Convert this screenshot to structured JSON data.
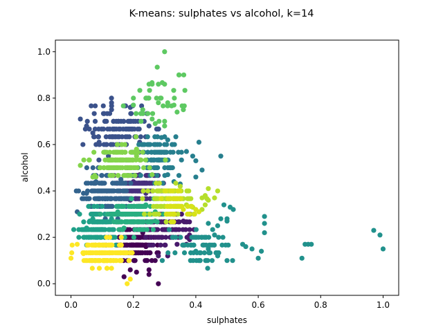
{
  "chart_data": {
    "type": "scatter",
    "title": "K-means: sulphates vs alcohol, k=14",
    "xlabel": "sulphates",
    "ylabel": "alcohol",
    "xlim": [
      -0.05,
      1.05
    ],
    "ylim": [
      -0.05,
      1.05
    ],
    "xticks": [
      "0.0",
      "0.2",
      "0.4",
      "0.6",
      "0.8",
      "1.0"
    ],
    "yticks": [
      "0.0",
      "0.2",
      "0.4",
      "0.6",
      "0.8",
      "1.0"
    ],
    "grid": false,
    "legend": "none",
    "colormap": "viridis",
    "clusters": [
      {
        "id": 0,
        "color": "#440154",
        "center": [
          0.21,
          0.17
        ],
        "spread": [
          0.03,
          0.035
        ],
        "count": 180,
        "points": [
          [
            0.19,
            0.06
          ],
          [
            0.21,
            0.05
          ],
          [
            0.25,
            0.06
          ],
          [
            0.25,
            0.04
          ],
          [
            0.28,
            0.0
          ],
          [
            0.17,
            0.03
          ],
          [
            0.24,
            0.16
          ],
          [
            0.23,
            0.22
          ]
        ]
      },
      {
        "id": 1,
        "color": "#481a6c",
        "center": [
          0.3,
          0.24
        ],
        "spread": [
          0.04,
          0.04
        ],
        "count": 90,
        "points": [
          [
            0.36,
            0.27
          ],
          [
            0.38,
            0.21
          ],
          [
            0.34,
            0.17
          ],
          [
            0.37,
            0.17
          ],
          [
            0.38,
            0.19
          ],
          [
            0.34,
            0.3
          ],
          [
            0.28,
            0.12
          ],
          [
            0.31,
            0.12
          ]
        ]
      },
      {
        "id": 2,
        "color": "#472f7d",
        "center": [
          0.215,
          0.42
        ],
        "spread": [
          0.028,
          0.028
        ],
        "count": 170,
        "points": [
          [
            0.19,
            0.36
          ],
          [
            0.22,
            0.47
          ],
          [
            0.2,
            0.44
          ],
          [
            0.24,
            0.39
          ]
        ]
      },
      {
        "id": 3,
        "color": "#3b528b",
        "center": [
          0.15,
          0.66
        ],
        "spread": [
          0.05,
          0.05
        ],
        "count": 120,
        "points": [
          [
            0.03,
            0.71
          ],
          [
            0.05,
            0.68
          ],
          [
            0.13,
            0.78
          ],
          [
            0.13,
            0.75
          ],
          [
            0.19,
            0.76
          ],
          [
            0.2,
            0.7
          ],
          [
            0.25,
            0.68
          ],
          [
            0.07,
            0.65
          ],
          [
            0.09,
            0.61
          ],
          [
            0.22,
            0.61
          ],
          [
            0.12,
            0.55
          ]
        ]
      },
      {
        "id": 4,
        "color": "#33638d",
        "center": [
          0.11,
          0.38
        ],
        "spread": [
          0.04,
          0.04
        ],
        "count": 170,
        "points": [
          [
            0.02,
            0.31
          ],
          [
            0.04,
            0.39
          ],
          [
            0.05,
            0.39
          ],
          [
            0.08,
            0.44
          ],
          [
            0.09,
            0.3
          ],
          [
            0.11,
            0.28
          ],
          [
            0.15,
            0.28
          ],
          [
            0.16,
            0.45
          ]
        ]
      },
      {
        "id": 5,
        "color": "#277f8e",
        "center": [
          0.28,
          0.55
        ],
        "spread": [
          0.035,
          0.04
        ],
        "count": 100,
        "points": [
          [
            0.29,
            0.63
          ],
          [
            0.31,
            0.62
          ],
          [
            0.3,
            0.6
          ],
          [
            0.37,
            0.57
          ],
          [
            0.39,
            0.55
          ],
          [
            0.4,
            0.53
          ],
          [
            0.42,
            0.49
          ],
          [
            0.4,
            0.46
          ],
          [
            0.41,
            0.61
          ],
          [
            0.48,
            0.55
          ],
          [
            0.33,
            0.44
          ],
          [
            0.35,
            0.43
          ],
          [
            0.31,
            0.47
          ]
        ]
      },
      {
        "id": 6,
        "color": "#21918c",
        "center": [
          0.42,
          0.16
        ],
        "spread": [
          0.05,
          0.04
        ],
        "count": 70,
        "points": [
          [
            0.4,
            0.14
          ],
          [
            0.42,
            0.2
          ],
          [
            0.44,
            0.26
          ],
          [
            0.46,
            0.21
          ],
          [
            0.47,
            0.25
          ],
          [
            0.48,
            0.28
          ],
          [
            0.5,
            0.27
          ],
          [
            0.5,
            0.28
          ],
          [
            0.52,
            0.32
          ],
          [
            0.49,
            0.34
          ],
          [
            0.51,
            0.33
          ],
          [
            0.56,
            0.16
          ],
          [
            0.55,
            0.17
          ],
          [
            0.58,
            0.15
          ],
          [
            0.6,
            0.11
          ],
          [
            0.61,
            0.14
          ],
          [
            0.62,
            0.22
          ],
          [
            0.62,
            0.26
          ],
          [
            0.62,
            0.29
          ],
          [
            0.74,
            0.11
          ],
          [
            0.75,
            0.17
          ],
          [
            0.76,
            0.17
          ],
          [
            0.77,
            0.17
          ],
          [
            0.97,
            0.23
          ],
          [
            0.99,
            0.21
          ],
          [
            1.0,
            0.15
          ],
          [
            0.47,
            0.12
          ],
          [
            0.5,
            0.1
          ],
          [
            0.44,
            0.15
          ]
        ]
      },
      {
        "id": 7,
        "color": "#1fa088",
        "center": [
          0.09,
          0.24
        ],
        "spread": [
          0.03,
          0.035
        ],
        "count": 130,
        "points": [
          [
            0.05,
            0.24
          ],
          [
            0.05,
            0.2
          ],
          [
            0.06,
            0.27
          ],
          [
            0.07,
            0.28
          ],
          [
            0.13,
            0.28
          ]
        ]
      },
      {
        "id": 8,
        "color": "#28ae80",
        "center": [
          0.2,
          0.29
        ],
        "spread": [
          0.035,
          0.03
        ],
        "count": 160,
        "points": [
          [
            0.24,
            0.34
          ],
          [
            0.27,
            0.31
          ],
          [
            0.27,
            0.27
          ],
          [
            0.15,
            0.31
          ],
          [
            0.17,
            0.24
          ]
        ]
      },
      {
        "id": 9,
        "color": "#5ec962",
        "center": [
          0.28,
          0.79
        ],
        "spread": [
          0.05,
          0.06
        ],
        "count": 30,
        "points": [
          [
            0.3,
            1.0
          ],
          [
            0.25,
            0.86
          ],
          [
            0.26,
            0.86
          ],
          [
            0.28,
            0.86
          ],
          [
            0.3,
            0.86
          ],
          [
            0.2,
            0.8
          ],
          [
            0.24,
            0.8
          ],
          [
            0.2,
            0.77
          ],
          [
            0.23,
            0.75
          ],
          [
            0.28,
            0.78
          ],
          [
            0.31,
            0.78
          ],
          [
            0.33,
            0.77
          ],
          [
            0.3,
            0.7
          ],
          [
            0.3,
            0.68
          ],
          [
            0.26,
            0.71
          ],
          [
            0.27,
            0.69
          ],
          [
            0.36,
            0.75
          ],
          [
            0.34,
            0.74
          ]
        ]
      },
      {
        "id": 10,
        "color": "#84d44b",
        "center": [
          0.16,
          0.52
        ],
        "spread": [
          0.04,
          0.03
        ],
        "count": 130,
        "points": [
          [
            0.07,
            0.46
          ],
          [
            0.08,
            0.46
          ],
          [
            0.03,
            0.51
          ],
          [
            0.21,
            0.55
          ],
          [
            0.21,
            0.58
          ],
          [
            0.26,
            0.47
          ]
        ]
      },
      {
        "id": 11,
        "color": "#b5de2b",
        "center": [
          0.31,
          0.36
        ],
        "spread": [
          0.035,
          0.035
        ],
        "count": 120,
        "points": [
          [
            0.37,
            0.34
          ],
          [
            0.39,
            0.33
          ],
          [
            0.35,
            0.42
          ],
          [
            0.42,
            0.37
          ],
          [
            0.43,
            0.38
          ],
          [
            0.42,
            0.32
          ],
          [
            0.44,
            0.36
          ],
          [
            0.47,
            0.4
          ],
          [
            0.43,
            0.34
          ],
          [
            0.44,
            0.41
          ],
          [
            0.46,
            0.37
          ]
        ]
      },
      {
        "id": 12,
        "color": "#d8e219",
        "center": [
          0.34,
          0.34
        ],
        "spread": [
          0.03,
          0.03
        ],
        "count": 40,
        "points": [
          [
            0.36,
            0.32
          ],
          [
            0.38,
            0.3
          ],
          [
            0.4,
            0.32
          ],
          [
            0.41,
            0.31
          ],
          [
            0.32,
            0.4
          ]
        ]
      },
      {
        "id": 13,
        "color": "#fde725",
        "center": [
          0.11,
          0.13
        ],
        "spread": [
          0.035,
          0.025
        ],
        "count": 170,
        "points": [
          [
            0.0,
            0.11
          ],
          [
            0.02,
            0.17
          ],
          [
            0.18,
            0.0
          ],
          [
            0.19,
            0.02
          ],
          [
            0.04,
            0.13
          ],
          [
            0.08,
            0.1
          ],
          [
            0.16,
            0.1
          ]
        ]
      }
    ]
  }
}
